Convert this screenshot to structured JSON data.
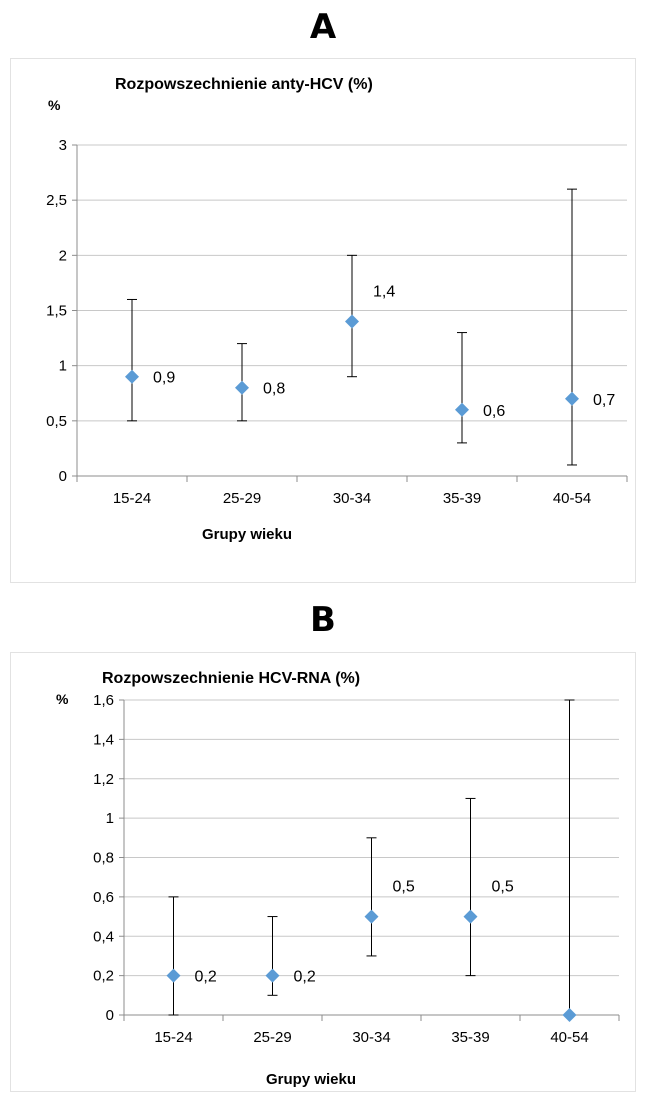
{
  "panels": {
    "a": {
      "letter": "A"
    },
    "b": {
      "letter": "B"
    }
  },
  "chart_data": [
    {
      "type": "scatter",
      "title": "Rozpowszechnienie anty-HCV (%)",
      "ylabel": "%",
      "xlabel": "Grupy wieku",
      "categories": [
        "15-24",
        "25-29",
        "30-34",
        "35-39",
        "40-54"
      ],
      "series": [
        {
          "values": [
            0.9,
            0.8,
            1.4,
            0.6,
            0.7
          ],
          "error_low": [
            0.5,
            0.5,
            0.9,
            0.3,
            0.1
          ],
          "error_high": [
            1.6,
            1.2,
            2.0,
            1.3,
            2.6
          ]
        }
      ],
      "data_labels": [
        "0,9",
        "0,8",
        "1,4",
        "0,6",
        "0,7"
      ],
      "ylim": [
        0,
        3
      ],
      "yticks": [
        0,
        0.5,
        1,
        1.5,
        2,
        2.5,
        3
      ],
      "ytick_labels": [
        "0",
        "0,5",
        "1",
        "1,5",
        "2",
        "2,5",
        "3"
      ],
      "grid": true,
      "marker_color": "#5b9bd5"
    },
    {
      "type": "scatter",
      "title": "Rozpowszechnienie HCV-RNA (%)",
      "ylabel": "%",
      "xlabel": "Grupy wieku",
      "categories": [
        "15-24",
        "25-29",
        "30-34",
        "35-39",
        "40-54"
      ],
      "series": [
        {
          "values": [
            0.2,
            0.2,
            0.5,
            0.5,
            0.0
          ],
          "error_low": [
            0.0,
            0.1,
            0.3,
            0.2,
            0.0
          ],
          "error_high": [
            0.6,
            0.5,
            0.9,
            1.1,
            1.6
          ]
        }
      ],
      "data_labels": [
        "0,2",
        "0,2",
        "0,5",
        "0,5",
        ""
      ],
      "ylim": [
        0,
        1.6
      ],
      "yticks": [
        0,
        0.2,
        0.4,
        0.6,
        0.8,
        1.0,
        1.2,
        1.4,
        1.6
      ],
      "ytick_labels": [
        "0",
        "0,2",
        "0,4",
        "0,6",
        "0,8",
        "1",
        "1,2",
        "1,4",
        "1,6"
      ],
      "grid": true,
      "marker_color": "#5b9bd5"
    }
  ]
}
